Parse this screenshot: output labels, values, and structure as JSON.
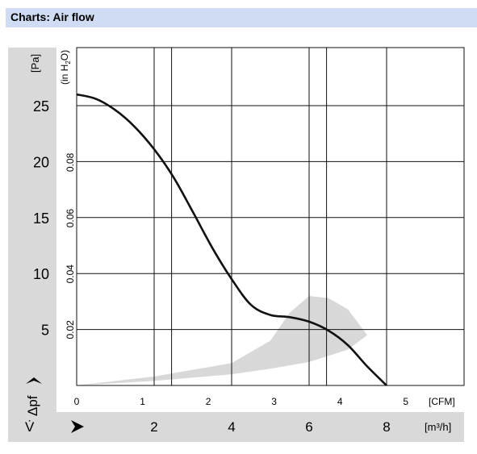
{
  "header": {
    "title": "Charts: Air flow"
  },
  "chart_data": {
    "type": "line",
    "title": "",
    "y_unit_pa": "[Pa]",
    "y_unit_inh2o_parts": [
      "(in H",
      "2",
      "O)"
    ],
    "y_symbol": "Δpf",
    "x_unit_cfm": "[CFM]",
    "x_unit_m3h": "[m³/h]",
    "x_symbol": "V̇",
    "x_cfm_ticks": [
      "0",
      "1",
      "2",
      "3",
      "4",
      "5"
    ],
    "x_m3h_ticks": [
      "2",
      "4",
      "6",
      "8"
    ],
    "y_pa_ticks": [
      "5",
      "10",
      "15",
      "20",
      "25"
    ],
    "y_inh2o_ticks": [
      "0.02",
      "0.04",
      "0.06",
      "0.08"
    ],
    "xlim_m3h": [
      0,
      10
    ],
    "ylim_pa": [
      0,
      30
    ],
    "grid": true,
    "series": [
      {
        "x": [
          0,
          0.5,
          1,
          1.5,
          2,
          2.5,
          3,
          3.5,
          4,
          4.5,
          5,
          5.5,
          6,
          6.5,
          7,
          7.5,
          8,
          8.5,
          8.5,
          9,
          9.5,
          10
        ],
        "y": [
          26,
          25.6,
          24.6,
          23.1,
          21.1,
          18.6,
          15.5,
          12.3,
          9.5,
          7.2,
          6.3,
          6.1,
          5.7,
          4.9,
          3.6,
          1.7,
          0,
          0,
          0,
          0,
          0,
          0
        ]
      }
    ],
    "operating_region": {
      "upper": {
        "x": [
          0,
          2,
          4,
          5,
          5.5,
          6,
          6.5,
          7,
          7.5
        ],
        "y": [
          0,
          0.8,
          2,
          4,
          6.5,
          8,
          7.8,
          6.8,
          4.5
        ]
      },
      "lower": {
        "x": [
          7.5,
          7,
          6,
          5,
          4,
          2,
          0
        ],
        "y": [
          4.5,
          3.2,
          2.1,
          1.5,
          1,
          0.4,
          0
        ]
      }
    },
    "colors": {
      "curve": "#111111",
      "region": "#d8d8d8",
      "gutter": "#d9d9d9",
      "grid": "#111111"
    }
  }
}
